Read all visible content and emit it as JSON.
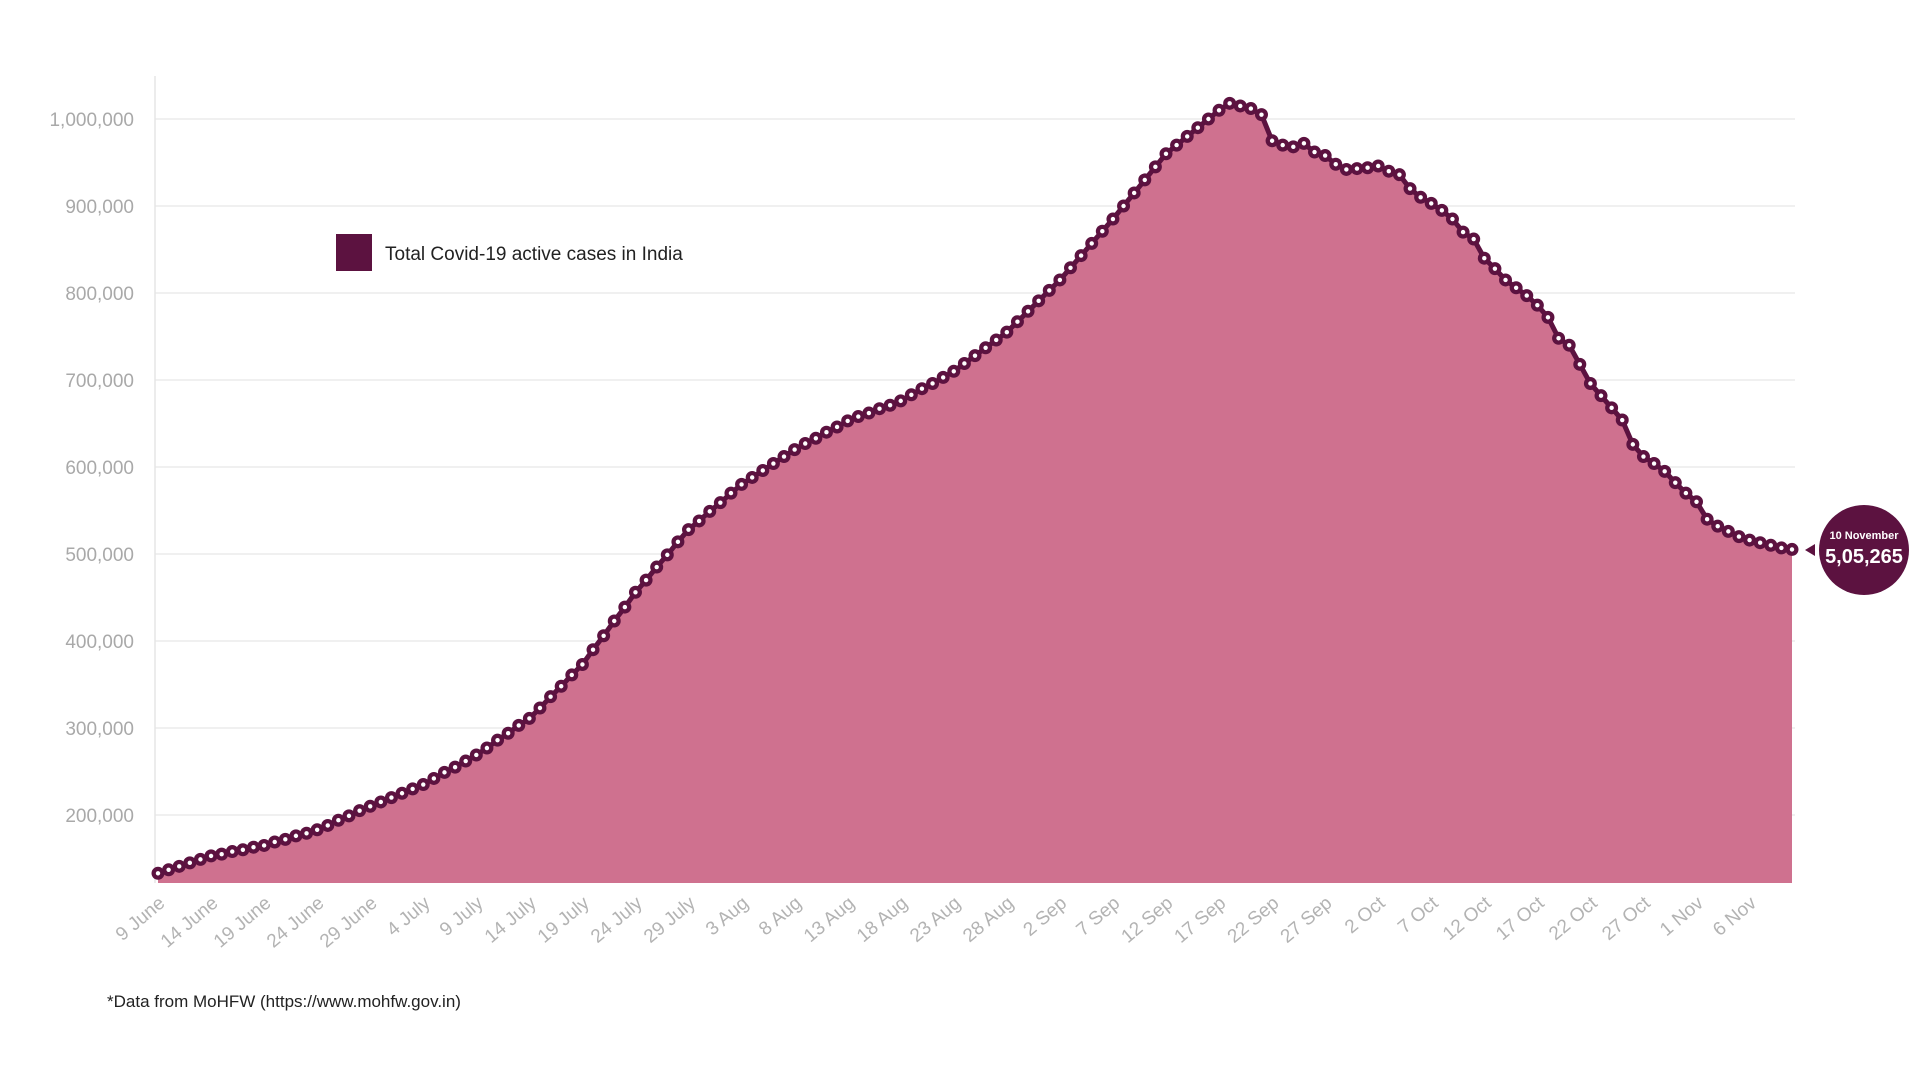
{
  "chart_data": {
    "type": "area",
    "title": "",
    "xlabel": "",
    "ylabel": "",
    "start_date": "9 June",
    "end_date": "10 November",
    "ylim": [
      120000,
      1050000
    ],
    "yticks": [
      200000,
      300000,
      400000,
      500000,
      600000,
      700000,
      800000,
      900000,
      1000000
    ],
    "ytick_labels": [
      "200,000",
      "300,000",
      "400,000",
      "500,000",
      "600,000",
      "700,000",
      "800,000",
      "900,000",
      "1,000,000"
    ],
    "xtick_labels": [
      "9 June",
      "14 June",
      "19 June",
      "24 June",
      "29 June",
      "4 July",
      "9 July",
      "14 July",
      "19 July",
      "24 July",
      "29 July",
      "3 Aug",
      "8 Aug",
      "13 Aug",
      "18 Aug",
      "23 Aug",
      "28 Aug",
      "2 Sep",
      "7 Sep",
      "12 Sep",
      "17 Sep",
      "22 Sep",
      "27 Sep",
      "2 Oct",
      "7 Oct",
      "12 Oct",
      "17 Oct",
      "22 Oct",
      "27 Oct",
      "1 Nov",
      "6 Nov"
    ],
    "xtick_every_days": 5,
    "grid": "horizontal",
    "legend_position": "top-left",
    "series": [
      {
        "name": "Total Covid-19 active cases in India",
        "color": "#5c1240",
        "fill_color": "#cf718f",
        "values": [
          133000,
          137000,
          141000,
          145000,
          149000,
          153000,
          155000,
          158000,
          160000,
          163000,
          165000,
          169000,
          172000,
          176000,
          179000,
          183000,
          188000,
          194000,
          199000,
          205000,
          210000,
          215000,
          220000,
          225000,
          230000,
          235000,
          242000,
          249000,
          255000,
          262000,
          269000,
          277000,
          286000,
          294000,
          303000,
          311000,
          323000,
          336000,
          348000,
          361000,
          373000,
          390000,
          406000,
          423000,
          439000,
          456000,
          470000,
          485000,
          499000,
          514000,
          528000,
          538000,
          549000,
          559000,
          570000,
          580000,
          588000,
          596000,
          604000,
          612000,
          620000,
          627000,
          633000,
          640000,
          646000,
          653000,
          658000,
          662000,
          667000,
          671000,
          676000,
          683000,
          690000,
          696000,
          703000,
          710000,
          719000,
          728000,
          737000,
          746000,
          755000,
          767000,
          779000,
          791000,
          803000,
          815000,
          829000,
          843000,
          857000,
          871000,
          885000,
          900000,
          915000,
          930000,
          945000,
          960000,
          970000,
          980000,
          990000,
          1000000,
          1010000,
          1018000,
          1015000,
          1012000,
          1005000,
          975000,
          970000,
          968000,
          972000,
          962000,
          958000,
          948000,
          942000,
          943000,
          944000,
          946000,
          940000,
          936000,
          920000,
          910000,
          903000,
          895000,
          885000,
          870000,
          862000,
          840000,
          828000,
          815000,
          806000,
          797000,
          786000,
          772000,
          748000,
          740000,
          718000,
          696000,
          682000,
          668000,
          654000,
          626000,
          612000,
          604000,
          595000,
          582000,
          570000,
          560000,
          540000,
          532000,
          526000,
          520000,
          516000,
          513000,
          510000,
          507000,
          505265
        ]
      }
    ],
    "annotation": {
      "date": "10 November",
      "value_label": "5,05,265",
      "color": "#5c1240"
    }
  },
  "footnote": "*Data from MoHFW (https://www.mohfw.gov.in)"
}
